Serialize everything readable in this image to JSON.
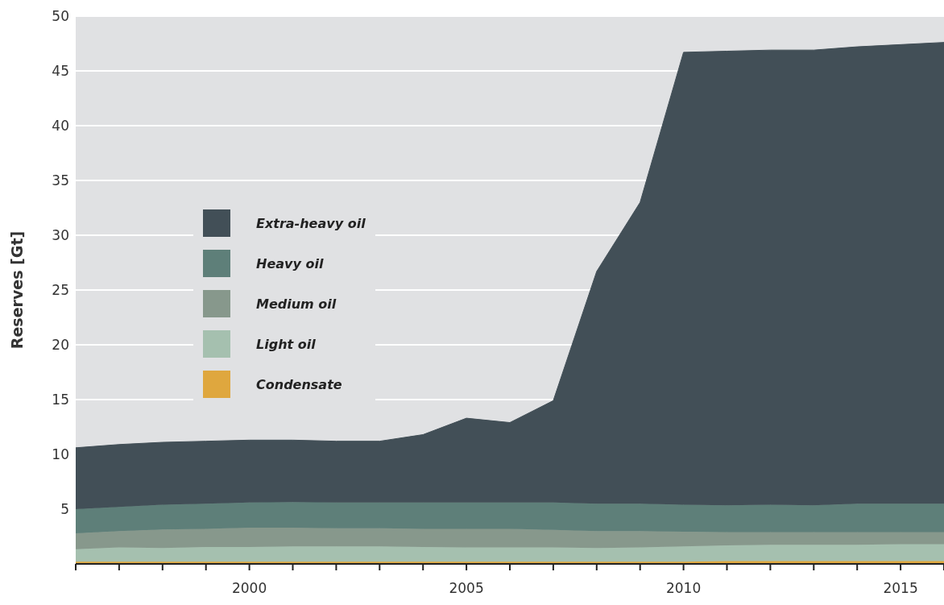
{
  "chart_data": {
    "type": "area",
    "stacked": true,
    "ylabel": "Reserves [Gt]",
    "x": [
      1996,
      1997,
      1998,
      1999,
      2000,
      2001,
      2002,
      2003,
      2004,
      2005,
      2006,
      2007,
      2008,
      2009,
      2010,
      2011,
      2012,
      2013,
      2014,
      2015,
      2016
    ],
    "series": [
      {
        "name": "Condensate",
        "color": "#dfa73e",
        "values": [
          0.2,
          0.2,
          0.2,
          0.2,
          0.2,
          0.2,
          0.2,
          0.2,
          0.2,
          0.2,
          0.2,
          0.2,
          0.2,
          0.2,
          0.2,
          0.25,
          0.25,
          0.25,
          0.25,
          0.25,
          0.25
        ]
      },
      {
        "name": "Light oil",
        "color": "#a5c0af",
        "values": [
          1.15,
          1.3,
          1.25,
          1.35,
          1.35,
          1.4,
          1.4,
          1.4,
          1.35,
          1.3,
          1.3,
          1.3,
          1.25,
          1.3,
          1.4,
          1.45,
          1.5,
          1.5,
          1.5,
          1.55,
          1.55
        ]
      },
      {
        "name": "Medium oil",
        "color": "#87988c",
        "values": [
          1.45,
          1.5,
          1.7,
          1.65,
          1.75,
          1.7,
          1.65,
          1.65,
          1.65,
          1.7,
          1.7,
          1.6,
          1.55,
          1.5,
          1.35,
          1.2,
          1.15,
          1.15,
          1.15,
          1.1,
          1.1
        ]
      },
      {
        "name": "Heavy oil",
        "color": "#5e7f79",
        "values": [
          2.2,
          2.2,
          2.25,
          2.3,
          2.3,
          2.35,
          2.35,
          2.35,
          2.4,
          2.4,
          2.4,
          2.5,
          2.5,
          2.5,
          2.45,
          2.45,
          2.5,
          2.45,
          2.6,
          2.6,
          2.6
        ]
      },
      {
        "name": "Extra-heavy oil",
        "color": "#424f57",
        "values": [
          5.6,
          5.7,
          5.7,
          5.7,
          5.7,
          5.65,
          5.6,
          5.6,
          6.2,
          7.7,
          7.3,
          9.3,
          21.2,
          27.5,
          41.3,
          41.45,
          41.5,
          41.55,
          41.7,
          41.9,
          42.1
        ]
      }
    ],
    "xlim": [
      1996,
      2016
    ],
    "xticks": [
      {
        "value": 1996,
        "label": null
      },
      {
        "value": 1997,
        "label": null
      },
      {
        "value": 1998,
        "label": null
      },
      {
        "value": 1999,
        "label": null
      },
      2000,
      {
        "value": 2001,
        "label": null
      },
      {
        "value": 2002,
        "label": null
      },
      {
        "value": 2003,
        "label": null
      },
      {
        "value": 2004,
        "label": null
      },
      2005,
      {
        "value": 2006,
        "label": null
      },
      {
        "value": 2007,
        "label": null
      },
      {
        "value": 2008,
        "label": null
      },
      {
        "value": 2009,
        "label": null
      },
      2010,
      {
        "value": 2011,
        "label": null
      },
      {
        "value": 2012,
        "label": null
      },
      {
        "value": 2013,
        "label": null
      },
      {
        "value": 2014,
        "label": null
      },
      2015,
      {
        "value": 2016,
        "label": null
      }
    ],
    "ylim": [
      0,
      50
    ],
    "yticks": [
      5,
      10,
      15,
      20,
      25,
      30,
      35,
      40,
      45,
      50
    ],
    "grid": "y",
    "legend": "left"
  }
}
